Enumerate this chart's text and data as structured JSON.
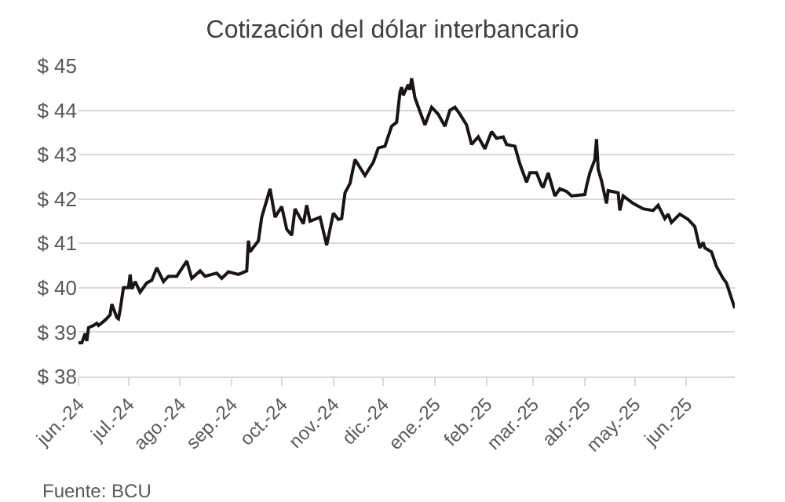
{
  "chart_data": {
    "type": "line",
    "title": "Cotización del dólar interbancario",
    "x": [
      "2024-06-01",
      "2024-06-03",
      "2024-06-05",
      "2024-06-06",
      "2024-06-07",
      "2024-06-10",
      "2024-06-12",
      "2024-06-13",
      "2024-06-17",
      "2024-06-20",
      "2024-06-21",
      "2024-06-24",
      "2024-06-25",
      "2024-06-26",
      "2024-06-28",
      "2024-07-01",
      "2024-07-02",
      "2024-07-03",
      "2024-07-05",
      "2024-07-08",
      "2024-07-12",
      "2024-07-15",
      "2024-07-18",
      "2024-07-22",
      "2024-07-25",
      "2024-07-30",
      "2024-08-05",
      "2024-08-08",
      "2024-08-13",
      "2024-08-16",
      "2024-08-23",
      "2024-08-26",
      "2024-08-30",
      "2024-09-05",
      "2024-09-10",
      "2024-09-11",
      "2024-09-12",
      "2024-09-17",
      "2024-09-19",
      "2024-09-24",
      "2024-09-27",
      "2024-10-01",
      "2024-10-04",
      "2024-10-07",
      "2024-10-09",
      "2024-10-14",
      "2024-10-16",
      "2024-10-18",
      "2024-10-24",
      "2024-10-28",
      "2024-11-01",
      "2024-11-04",
      "2024-11-06",
      "2024-11-08",
      "2024-11-11",
      "2024-11-14",
      "2024-11-15",
      "2024-11-20",
      "2024-11-25",
      "2024-11-28",
      "2024-12-02",
      "2024-12-06",
      "2024-12-09",
      "2024-12-11",
      "2024-12-12",
      "2024-12-13",
      "2024-12-16",
      "2024-12-17",
      "2024-12-18",
      "2024-12-20",
      "2024-12-23",
      "2024-12-26",
      "2024-12-30",
      "2025-01-03",
      "2025-01-07",
      "2025-01-10",
      "2025-01-13",
      "2025-01-16",
      "2025-01-20",
      "2025-01-23",
      "2025-01-27",
      "2025-01-31",
      "2025-02-04",
      "2025-02-07",
      "2025-02-11",
      "2025-02-13",
      "2025-02-18",
      "2025-02-21",
      "2025-02-25",
      "2025-02-27",
      "2025-03-03",
      "2025-03-06",
      "2025-03-07",
      "2025-03-10",
      "2025-03-14",
      "2025-03-17",
      "2025-03-21",
      "2025-03-24",
      "2025-04-01",
      "2025-04-02",
      "2025-04-04",
      "2025-04-07",
      "2025-04-08",
      "2025-04-09",
      "2025-04-11",
      "2025-04-14",
      "2025-04-15",
      "2025-04-21",
      "2025-04-22",
      "2025-04-24",
      "2025-04-30",
      "2025-05-06",
      "2025-05-12",
      "2025-05-15",
      "2025-05-19",
      "2025-05-21",
      "2025-05-23",
      "2025-05-28",
      "2025-06-02",
      "2025-06-06",
      "2025-06-09",
      "2025-06-11",
      "2025-06-12",
      "2025-06-16",
      "2025-06-19",
      "2025-06-23",
      "2025-06-25",
      "2025-06-30"
    ],
    "values": [
      38.76,
      38.76,
      38.97,
      38.8,
      39.1,
      39.15,
      39.2,
      39.15,
      39.27,
      39.39,
      39.63,
      39.33,
      39.3,
      39.5,
      40.0,
      40.0,
      40.3,
      39.97,
      40.14,
      39.9,
      40.11,
      40.17,
      40.45,
      40.14,
      40.26,
      40.26,
      40.6,
      40.21,
      40.38,
      40.26,
      40.33,
      40.21,
      40.36,
      40.3,
      40.38,
      41.06,
      40.81,
      41.06,
      41.59,
      42.23,
      41.59,
      41.83,
      41.32,
      41.18,
      41.78,
      41.44,
      41.86,
      41.5,
      41.59,
      40.96,
      41.68,
      41.54,
      41.56,
      42.14,
      42.35,
      42.89,
      42.83,
      42.53,
      42.83,
      43.15,
      43.19,
      43.64,
      43.73,
      44.4,
      44.52,
      44.34,
      44.58,
      44.46,
      44.72,
      44.28,
      43.97,
      43.67,
      44.07,
      43.91,
      43.64,
      44.0,
      44.07,
      43.91,
      43.67,
      43.23,
      43.4,
      43.13,
      43.52,
      43.37,
      43.4,
      43.23,
      43.19,
      42.79,
      42.38,
      42.59,
      42.59,
      42.31,
      42.26,
      42.59,
      42.07,
      42.23,
      42.17,
      42.07,
      42.1,
      42.29,
      42.59,
      42.89,
      43.35,
      42.67,
      42.41,
      41.9,
      42.19,
      42.14,
      41.74,
      42.07,
      41.9,
      41.78,
      41.74,
      41.86,
      41.56,
      41.66,
      41.47,
      41.66,
      41.54,
      41.38,
      40.9,
      41.02,
      40.9,
      40.81,
      40.48,
      40.21,
      40.11,
      39.54
    ],
    "color": "#1a1414",
    "xlim": [
      "2024-06-01",
      "2025-06-30"
    ],
    "xticks": [
      {
        "value": "2024-06-01",
        "label": "jun.-24"
      },
      {
        "value": "2024-07-01",
        "label": "jul.-24"
      },
      {
        "value": "2024-08-01",
        "label": "ago.-24"
      },
      {
        "value": "2024-09-01",
        "label": "sep.-24"
      },
      {
        "value": "2024-10-01",
        "label": "oct.-24"
      },
      {
        "value": "2024-11-01",
        "label": "nov.-24"
      },
      {
        "value": "2024-12-01",
        "label": "dic.-24"
      },
      {
        "value": "2025-01-01",
        "label": "ene.-25"
      },
      {
        "value": "2025-02-01",
        "label": "feb.-25"
      },
      {
        "value": "2025-03-01",
        "label": "mar.-25"
      },
      {
        "value": "2025-04-01",
        "label": "abr.-25"
      },
      {
        "value": "2025-05-01",
        "label": "may.-25"
      },
      {
        "value": "2025-06-01",
        "label": "jun.-25"
      }
    ],
    "ylim": [
      38,
      45
    ],
    "yticks": [
      {
        "value": 38,
        "label": "$ 38"
      },
      {
        "value": 39,
        "label": "$ 39"
      },
      {
        "value": 40,
        "label": "$ 40"
      },
      {
        "value": 41,
        "label": "$ 41"
      },
      {
        "value": 42,
        "label": "$ 42"
      },
      {
        "value": 43,
        "label": "$ 43"
      },
      {
        "value": 44,
        "label": "$ 44"
      },
      {
        "value": 45,
        "label": "$ 45"
      }
    ],
    "grid": "y",
    "annotations": [
      "Fuente: BCU"
    ]
  }
}
